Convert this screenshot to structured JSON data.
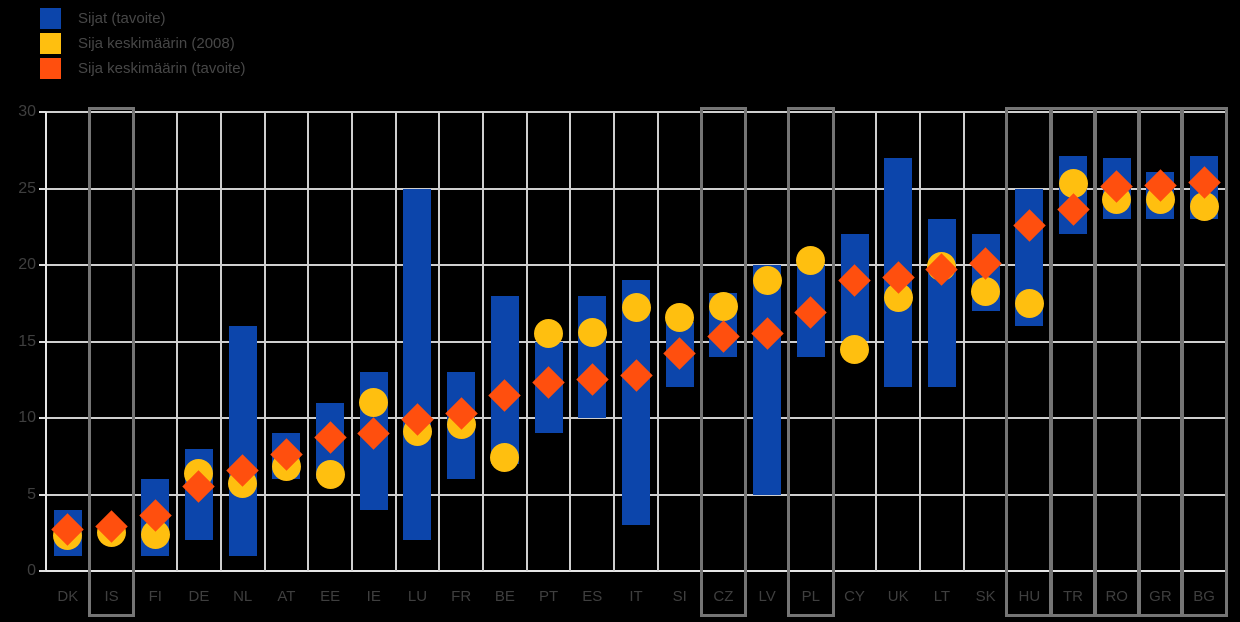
{
  "chart_data": {
    "type": "bar",
    "subtype": "floating-range-bars-with-point-markers",
    "title": "",
    "legend_position": "top-left",
    "legend": [
      {
        "label": "Sijat (tavoite)",
        "color": "#0c45ab",
        "marker": "square",
        "series": "range"
      },
      {
        "label": "Sija keskimäärin (2008)",
        "color": "#ffbf0f",
        "marker": "square",
        "series": "circle-2008"
      },
      {
        "label": "Sija keskimäärin (tavoite)",
        "color": "#ff4f0e",
        "marker": "square",
        "series": "diamond-target"
      }
    ],
    "ylim": [
      0,
      30
    ],
    "yticks": [
      0,
      5,
      10,
      15,
      20,
      25,
      30
    ],
    "grid": "full-grid-horizontal-and-vertical",
    "categories": [
      "DK",
      "IS",
      "FI",
      "DE",
      "NL",
      "AT",
      "EE",
      "IE",
      "LU",
      "FR",
      "BE",
      "PT",
      "ES",
      "IT",
      "SI",
      "CZ",
      "LV",
      "PL",
      "CY",
      "UK",
      "LT",
      "SK",
      "HU",
      "TR",
      "RO",
      "GR",
      "BG"
    ],
    "highlighted_categories": [
      "IS",
      "CZ",
      "PL",
      "HU",
      "TR",
      "RO",
      "GR",
      "BG"
    ],
    "series": [
      {
        "name": "range",
        "type": "floating-bar",
        "low": [
          1.0,
          null,
          1.0,
          2.0,
          1.0,
          6.0,
          6.0,
          4.0,
          2.0,
          6.0,
          7.0,
          9.0,
          10.0,
          3.0,
          12.0,
          14.0,
          5.0,
          14.0,
          15.0,
          12.0,
          12.0,
          17.0,
          16.0,
          22.0,
          23.0,
          23.0,
          23.0
        ],
        "high": [
          4.0,
          null,
          6.0,
          8.0,
          16.0,
          9.0,
          11.0,
          13.0,
          25.0,
          13.0,
          18.0,
          15.0,
          18.0,
          19.0,
          16.3,
          18.2,
          20.0,
          20.0,
          22.0,
          27.0,
          23.0,
          22.0,
          25.0,
          27.1,
          27.0,
          26.1,
          27.1
        ]
      },
      {
        "name": "circle-2008",
        "type": "point-circle",
        "values": [
          2.3,
          2.5,
          2.4,
          6.4,
          5.7,
          6.8,
          6.3,
          11.0,
          9.1,
          9.6,
          7.4,
          15.5,
          15.6,
          17.2,
          16.6,
          17.3,
          19.0,
          20.3,
          14.5,
          17.9,
          19.9,
          18.3,
          17.5,
          25.3,
          24.3,
          24.3,
          23.8
        ]
      },
      {
        "name": "diamond-target",
        "type": "point-diamond",
        "values": [
          2.7,
          2.9,
          3.6,
          5.5,
          6.6,
          7.6,
          8.7,
          9.0,
          9.9,
          10.3,
          11.5,
          12.3,
          12.5,
          12.8,
          14.2,
          15.3,
          15.5,
          16.9,
          19.0,
          19.2,
          19.7,
          20.1,
          22.6,
          23.6,
          25.1,
          25.2,
          25.4
        ]
      }
    ],
    "colors": {
      "background": "#000000",
      "bar_blue": "#0c45ab",
      "circle_yellow": "#ffbf0f",
      "diamond_orange": "#ff4f0e",
      "gridline": "#cfcfcf",
      "highlight_box": "#757575",
      "text": "#3f3f3f"
    }
  }
}
